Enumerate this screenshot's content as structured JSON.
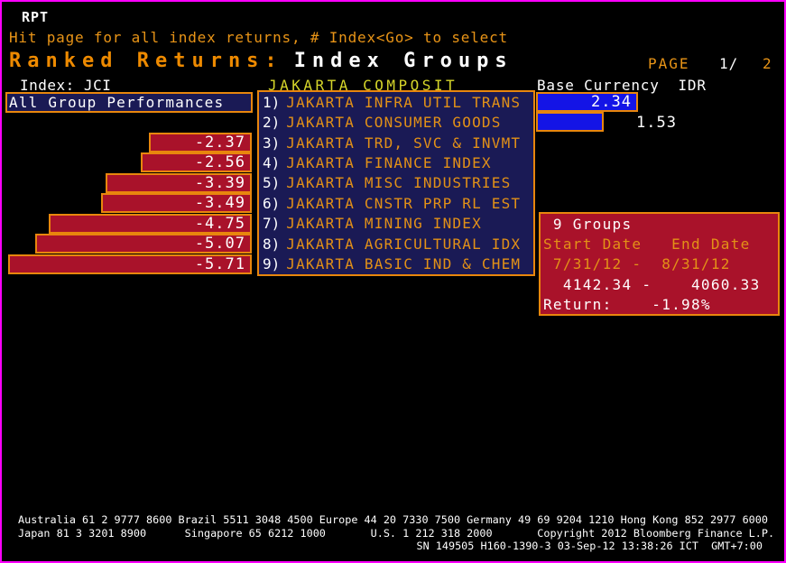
{
  "header": {
    "rpt": "RPT",
    "hint": "Hit page for all index returns, # Index<Go> to select",
    "title_left": "Ranked Returns:",
    "title_right": "Index Groups",
    "page_label": "PAGE",
    "page_current": "1/",
    "page_total": "2",
    "index_label": "Index: JCI",
    "index_name": "JAKARTA COMPOSIT",
    "base_currency": "Base Currency  IDR"
  },
  "panel": {
    "all_group_label": "All Group Performances",
    "groups": [
      {
        "num": "1)",
        "label": "JAKARTA INFRA UTIL TRANS",
        "value": 2.34
      },
      {
        "num": "2)",
        "label": "JAKARTA CONSUMER GOODS",
        "value": 1.53
      },
      {
        "num": "3)",
        "label": "JAKARTA TRD, SVC & INVMT",
        "value": -2.37
      },
      {
        "num": "4)",
        "label": "JAKARTA FINANCE INDEX",
        "value": -2.56
      },
      {
        "num": "5)",
        "label": "JAKARTA MISC INDUSTRIES",
        "value": -3.39
      },
      {
        "num": "6)",
        "label": "JAKARTA CNSTR PRP RL EST",
        "value": -3.49
      },
      {
        "num": "7)",
        "label": "JAKARTA MINING INDEX",
        "value": -4.75
      },
      {
        "num": "8)",
        "label": "JAKARTA AGRICULTURAL IDX",
        "value": -5.07
      },
      {
        "num": "9)",
        "label": "JAKARTA BASIC IND & CHEM",
        "value": -5.71
      }
    ]
  },
  "summary": {
    "groups_count": " 9 Groups",
    "dates_header": "Start Date   End Date",
    "dates": " 7/31/12 -  8/31/12",
    "values": "  4142.34 -    4060.33",
    "return_line": "Return:    -1.98%"
  },
  "footer": {
    "line1": "Australia 61 2 9777 8600 Brazil 5511 3048 4500 Europe 44 20 7330 7500 Germany 49 69 9204 1210 Hong Kong 852 2977 6000",
    "line2": "Japan 81 3 3201 8900      Singapore 65 6212 1000       U.S. 1 212 318 2000       Copyright 2012 Bloomberg Finance L.P.",
    "line3": "SN 149505 H160-1390-3 03-Sep-12 13:38:26 ICT  GMT+7:00"
  },
  "colors": {
    "screen_border": "#FF00FF",
    "background": "#000000",
    "amber_border": "#E8860D",
    "amber_text": "#E39117",
    "title_orange": "#EE8A00",
    "yellow": "#D6D62A",
    "navy": "#1A1A55",
    "crimson_bar": "#A9122A",
    "blue_bar": "#1414E6",
    "white": "#FFFFFF"
  }
}
